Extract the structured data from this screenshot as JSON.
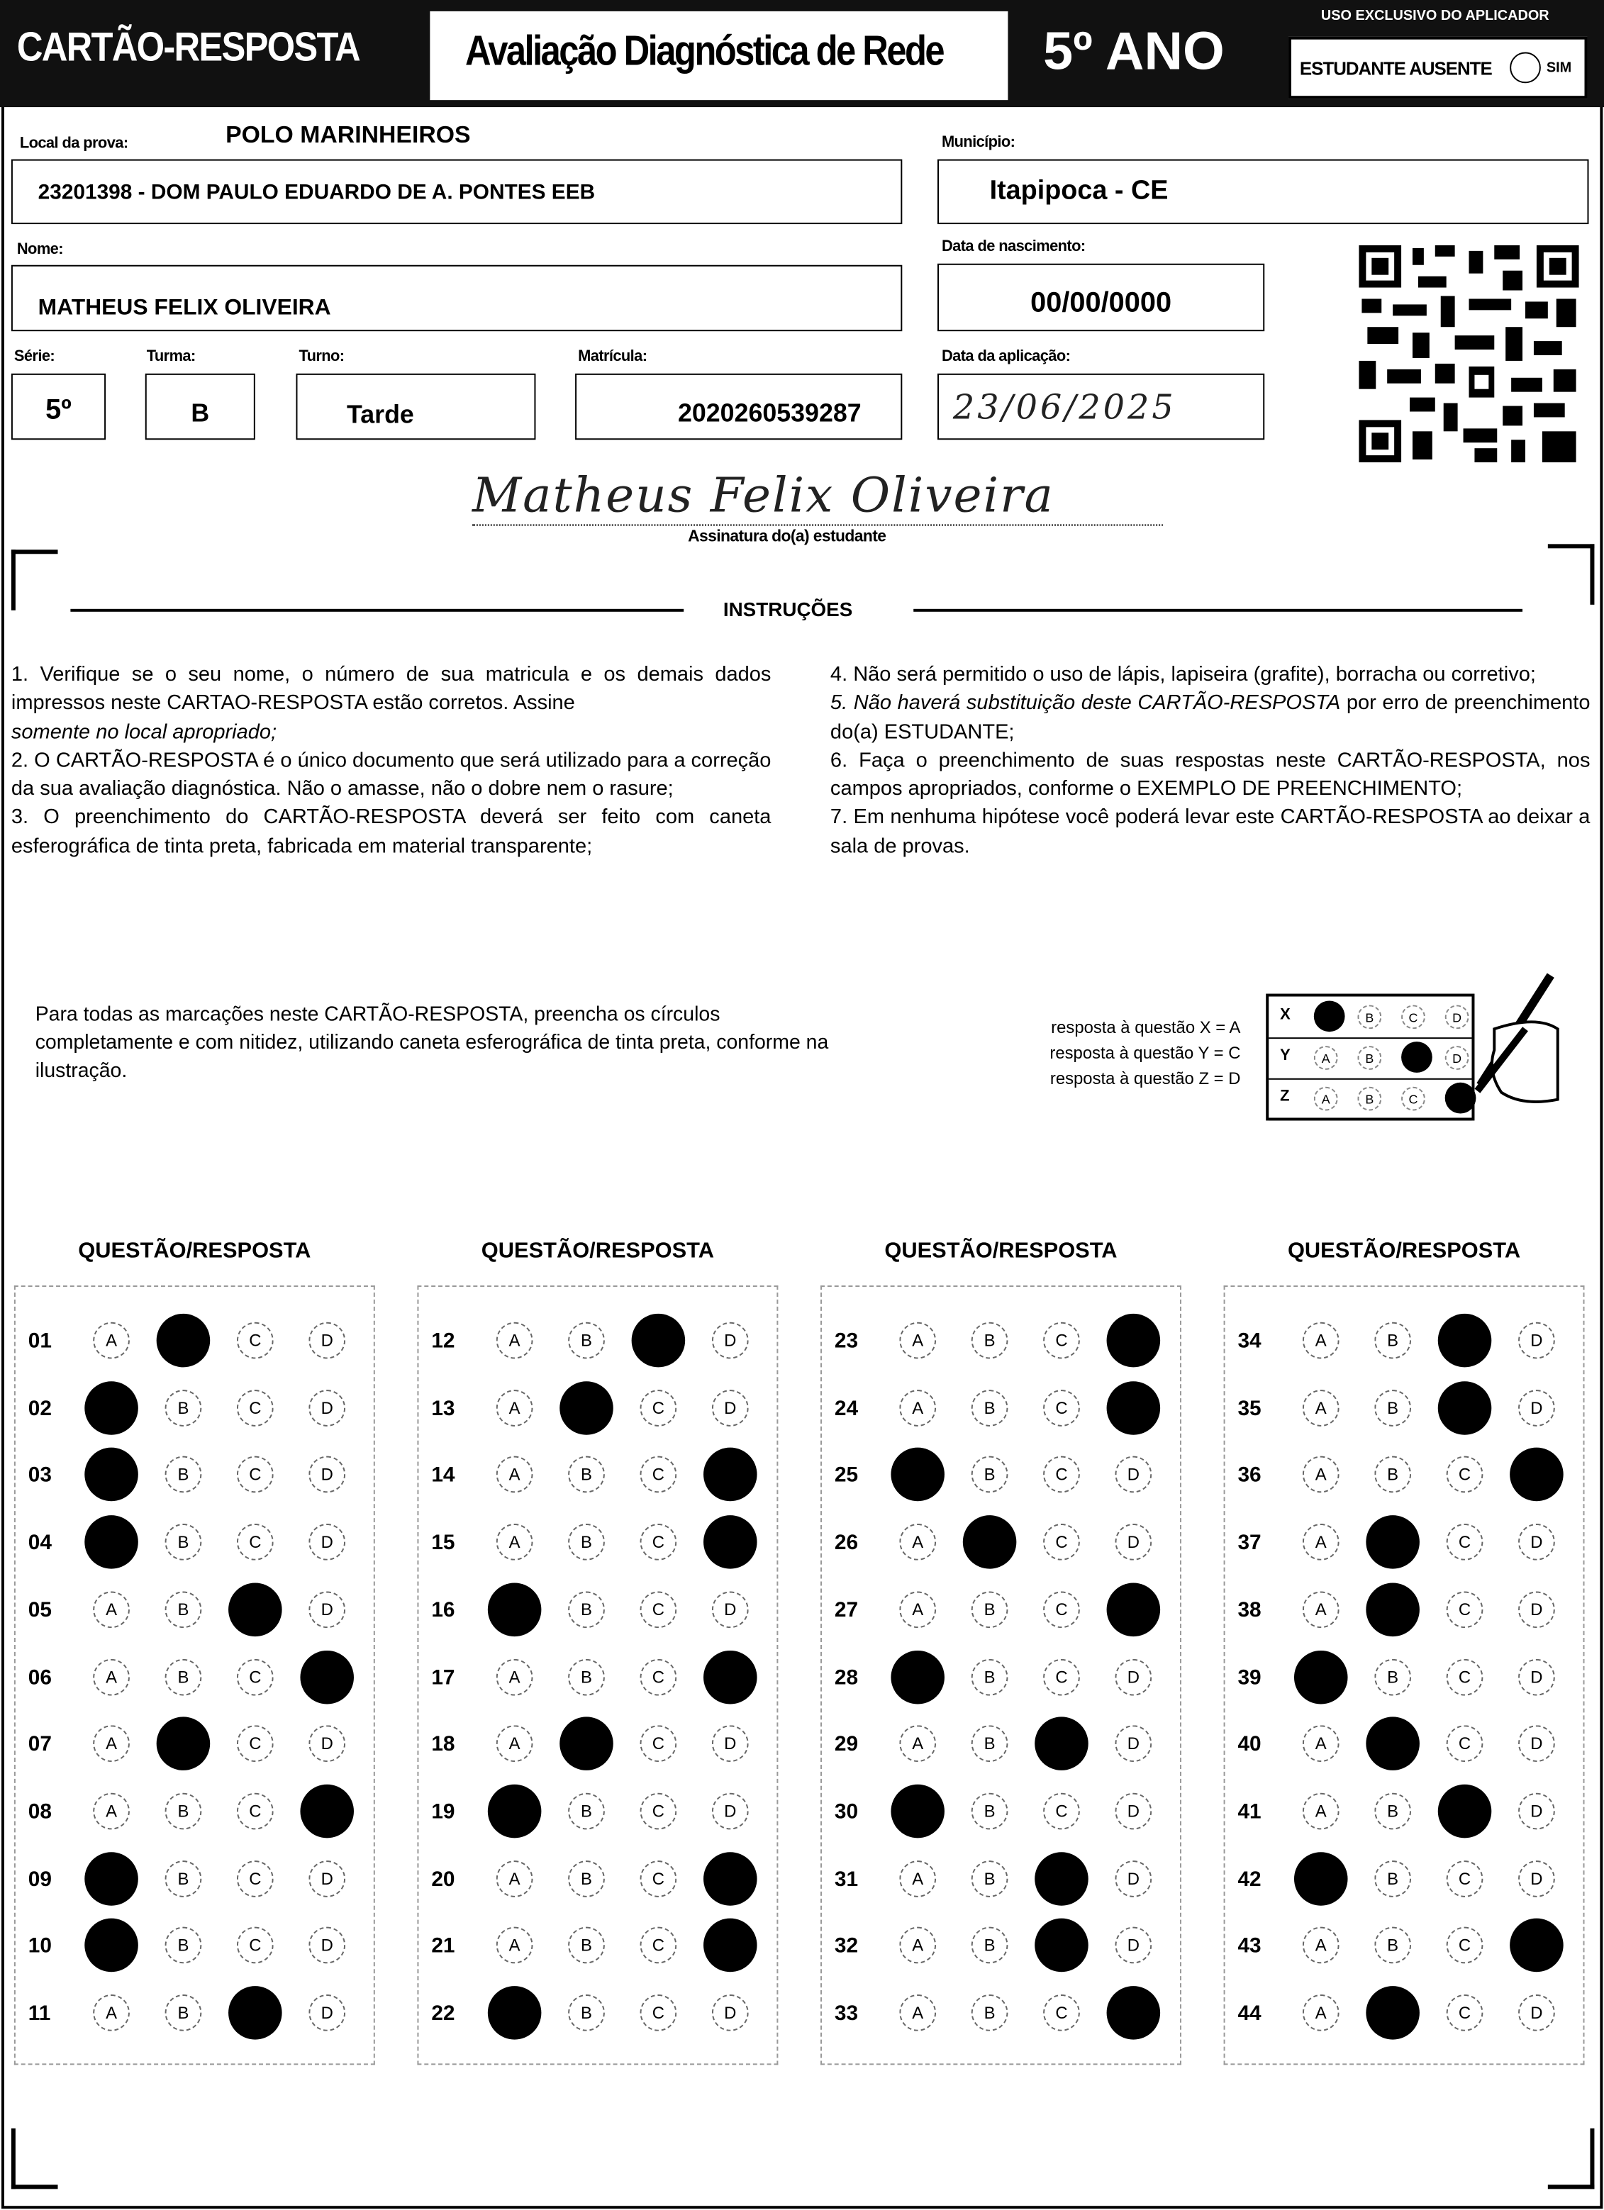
{
  "header": {
    "title": "CARTÃO-RESPOSTA",
    "subtitle": "Avaliação Diagnóstica de Rede",
    "grade_banner": "5º ANO",
    "applicator_label": "USO EXCLUSIVO DO APLICADOR",
    "absent_label": "ESTUDANTE AUSENTE",
    "absent_option": "SIM"
  },
  "fields": {
    "local_label": "Local da prova:",
    "local_value": "POLO MARINHEIROS",
    "school_value": "23201398 - DOM PAULO EDUARDO DE A. PONTES EEB",
    "municipio_label": "Município:",
    "municipio_value": "Itapipoca - CE",
    "nome_label": "Nome:",
    "nome_value": "MATHEUS FELIX OLIVEIRA",
    "nascimento_label": "Data de nascimento:",
    "nascimento_value": "00/00/0000",
    "serie_label": "Série:",
    "serie_value": "5º",
    "turma_label": "Turma:",
    "turma_value": "B",
    "turno_label": "Turno:",
    "turno_value": "Tarde",
    "matricula_label": "Matrícula:",
    "matricula_value": "2020260539287",
    "aplicacao_label": "Data da aplicação:",
    "aplicacao_value": "23/06/2025",
    "signature_value": "Matheus Felix Oliveira",
    "signature_label": "Assinatura do(a) estudante"
  },
  "instructions": {
    "title": "INSTRUÇÕES",
    "left": [
      "1. Verifique se o seu nome, o número de sua matricula e os demais dados impressos neste CARTAO-RESPOSTA estão corretos. Assine",
      "somente no local apropriado;",
      "2. O CARTÃO-RESPOSTA é o único documento que será utilizado para a correção da sua avaliação diagnóstica. Não o amasse, não o dobre nem o rasure;",
      "3. O preenchimento do CARTÃO-RESPOSTA deverá ser feito com caneta esferográfica de tinta preta, fabricada em material transparente;"
    ],
    "right": [
      "4. Não será permitido o uso de lápis, lapiseira (grafite), borracha ou corretivo;",
      "5. Não haverá substituição deste CARTÃO-RESPOSTA",
      "por erro de preenchimento do(a) ESTUDANTE;",
      "6. Faça o preenchimento de suas respostas neste CARTÃO-RESPOSTA, nos campos apropriados, conforme o EXEMPLO DE PREENCHIMENTO;",
      "7. Em nenhuma hipótese você poderá levar este CARTÃO-RESPOSTA ao deixar a sala de provas."
    ],
    "fill_note": "Para todas as marcações neste CARTÃO-RESPOSTA, preencha os círculos completamente e com nitidez, utilizando caneta esferográfica de tinta preta, conforme na ilustração.",
    "example_labels": [
      "resposta à questão X = A",
      "resposta à questão Y = C",
      "resposta à questão Z = D"
    ],
    "example_rows": [
      {
        "label": "X",
        "answer": "A"
      },
      {
        "label": "Y",
        "answer": "C"
      },
      {
        "label": "Z",
        "answer": "D"
      }
    ]
  },
  "answers": {
    "column_header": "QUESTÃO/RESPOSTA",
    "options": [
      "A",
      "B",
      "C",
      "D"
    ],
    "questions": [
      {
        "number": "01",
        "answer": "B"
      },
      {
        "number": "02",
        "answer": "A"
      },
      {
        "number": "03",
        "answer": "A"
      },
      {
        "number": "04",
        "answer": "A"
      },
      {
        "number": "05",
        "answer": "C"
      },
      {
        "number": "06",
        "answer": "D"
      },
      {
        "number": "07",
        "answer": "B"
      },
      {
        "number": "08",
        "answer": "D"
      },
      {
        "number": "09",
        "answer": "A"
      },
      {
        "number": "10",
        "answer": "A"
      },
      {
        "number": "11",
        "answer": "C"
      },
      {
        "number": "12",
        "answer": "C"
      },
      {
        "number": "13",
        "answer": "B"
      },
      {
        "number": "14",
        "answer": "D"
      },
      {
        "number": "15",
        "answer": "D"
      },
      {
        "number": "16",
        "answer": "A"
      },
      {
        "number": "17",
        "answer": "D"
      },
      {
        "number": "18",
        "answer": "B"
      },
      {
        "number": "19",
        "answer": "A"
      },
      {
        "number": "20",
        "answer": "D"
      },
      {
        "number": "21",
        "answer": "D"
      },
      {
        "number": "22",
        "answer": "A"
      },
      {
        "number": "23",
        "answer": "D"
      },
      {
        "number": "24",
        "answer": "D"
      },
      {
        "number": "25",
        "answer": "A"
      },
      {
        "number": "26",
        "answer": "B"
      },
      {
        "number": "27",
        "answer": "D"
      },
      {
        "number": "28",
        "answer": "A"
      },
      {
        "number": "29",
        "answer": "C"
      },
      {
        "number": "30",
        "answer": "A"
      },
      {
        "number": "31",
        "answer": "C"
      },
      {
        "number": "32",
        "answer": "C"
      },
      {
        "number": "33",
        "answer": "D"
      },
      {
        "number": "34",
        "answer": "C"
      },
      {
        "number": "35",
        "answer": "C"
      },
      {
        "number": "36",
        "answer": "D"
      },
      {
        "number": "37",
        "answer": "B"
      },
      {
        "number": "38",
        "answer": "B"
      },
      {
        "number": "39",
        "answer": "A"
      },
      {
        "number": "40",
        "answer": "B"
      },
      {
        "number": "41",
        "answer": "C"
      },
      {
        "number": "42",
        "answer": "A"
      },
      {
        "number": "43",
        "answer": "D"
      },
      {
        "number": "44",
        "answer": "B"
      }
    ]
  }
}
